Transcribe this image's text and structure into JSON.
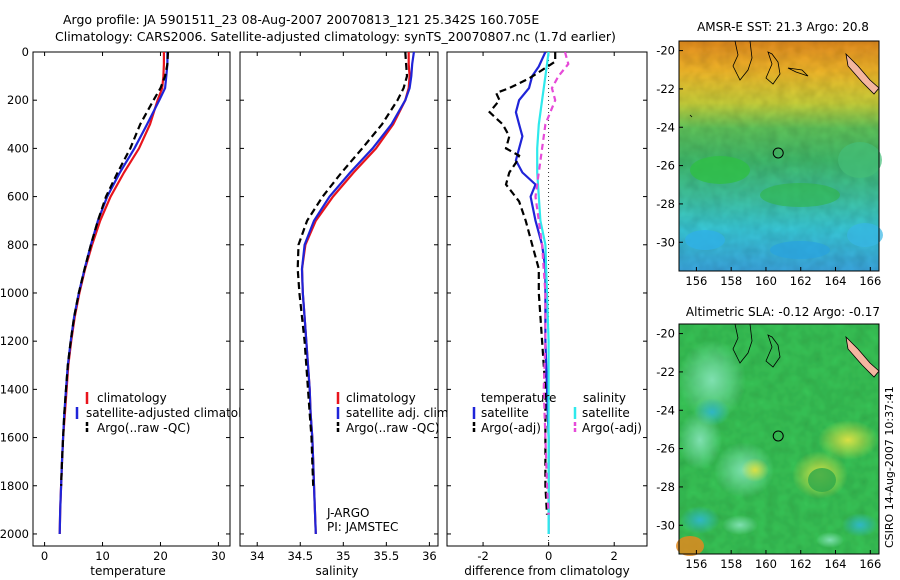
{
  "header": {
    "line1": "Argo profile: JA 5901511_23 08-Aug-2007 20070813_121 25.342S 160.705E",
    "line2": "Climatology: CARS2006. Satellite-adjusted climatology: synTS_20070807.nc (1.7d earlier)"
  },
  "stamp": "CSIRO 14-Aug-2007 10:37:41",
  "colors": {
    "climatology": "#e8141c",
    "satellite": "#1f24d8",
    "argo": "#000000",
    "satellite_sal": "#2ee9ec",
    "argo_sal": "#e64ad8"
  },
  "chart_data": [
    {
      "id": "temperature",
      "type": "line",
      "xlabel": "temperature",
      "ylabel": "",
      "xlim": [
        -2,
        32
      ],
      "ylim": [
        2050,
        0
      ],
      "xticks": [
        0,
        10,
        20,
        30
      ],
      "yticks": [
        0,
        200,
        400,
        600,
        800,
        1000,
        1200,
        1400,
        1600,
        1800,
        2000
      ],
      "legend": {
        "placement": "lower-left",
        "entries": [
          "climatology",
          "satellite-adjusted climatology",
          "Argo(..raw -QC)"
        ]
      },
      "series": [
        {
          "name": "climatology",
          "color": "climatology",
          "dash": "",
          "points": [
            [
              20.6,
              0
            ],
            [
              20.6,
              50
            ],
            [
              20.5,
              100
            ],
            [
              20.3,
              150
            ],
            [
              19.5,
              200
            ],
            [
              18.2,
              300
            ],
            [
              16.3,
              400
            ],
            [
              13.7,
              500
            ],
            [
              11.4,
              600
            ],
            [
              9.6,
              700
            ],
            [
              8.2,
              800
            ],
            [
              7.0,
              900
            ],
            [
              6.0,
              1000
            ],
            [
              5.2,
              1100
            ],
            [
              4.6,
              1200
            ],
            [
              4.1,
              1300
            ],
            [
              3.8,
              1400
            ],
            [
              3.5,
              1500
            ],
            [
              3.2,
              1600
            ],
            [
              3.0,
              1700
            ],
            [
              2.85,
              1800
            ],
            [
              2.7,
              1900
            ],
            [
              2.6,
              2000
            ]
          ]
        },
        {
          "name": "satellite-adjusted climatology",
          "color": "satellite",
          "dash": "",
          "points": [
            [
              21.2,
              0
            ],
            [
              21.2,
              50
            ],
            [
              21.0,
              100
            ],
            [
              20.8,
              150
            ],
            [
              19.8,
              200
            ],
            [
              17.7,
              300
            ],
            [
              15.5,
              400
            ],
            [
              13.0,
              500
            ],
            [
              10.8,
              600
            ],
            [
              9.2,
              700
            ],
            [
              8.0,
              800
            ],
            [
              6.9,
              900
            ],
            [
              5.9,
              1000
            ],
            [
              5.1,
              1100
            ],
            [
              4.5,
              1200
            ],
            [
              4.0,
              1300
            ],
            [
              3.7,
              1400
            ],
            [
              3.4,
              1500
            ],
            [
              3.2,
              1600
            ],
            [
              3.0,
              1700
            ],
            [
              2.85,
              1800
            ],
            [
              2.7,
              1900
            ],
            [
              2.6,
              2000
            ]
          ]
        },
        {
          "name": "Argo(..raw -QC)",
          "color": "argo",
          "dash": "7,4",
          "points": [
            [
              21.3,
              0
            ],
            [
              21.2,
              50
            ],
            [
              20.8,
              100
            ],
            [
              20.0,
              150
            ],
            [
              18.8,
              200
            ],
            [
              16.5,
              300
            ],
            [
              14.8,
              400
            ],
            [
              12.6,
              500
            ],
            [
              10.6,
              600
            ],
            [
              9.2,
              700
            ],
            [
              8.0,
              800
            ],
            [
              6.9,
              900
            ],
            [
              5.9,
              1000
            ],
            [
              5.1,
              1100
            ],
            [
              4.5,
              1200
            ],
            [
              4.0,
              1300
            ],
            [
              3.7,
              1400
            ],
            [
              3.4,
              1500
            ],
            [
              3.2,
              1600
            ],
            [
              3.0,
              1700
            ],
            [
              2.85,
              1800
            ]
          ]
        }
      ]
    },
    {
      "id": "salinity",
      "type": "line",
      "xlabel": "salinity",
      "ylabel": "",
      "xlim": [
        33.8,
        36.1
      ],
      "ylim": [
        2050,
        0
      ],
      "xticks": [
        34,
        34.5,
        35,
        35.5,
        36
      ],
      "xtick_labels": [
        "34",
        "34.5",
        "35",
        "35.5",
        "36"
      ],
      "annotation": [
        "J-ARGO",
        "PI: JAMSTEC"
      ],
      "legend": {
        "placement": "lower-right",
        "entries": [
          "climatology",
          "satellite adj. clim.",
          "Argo(..raw -QC)"
        ]
      },
      "series": [
        {
          "name": "climatology",
          "color": "climatology",
          "dash": "",
          "points": [
            [
              35.76,
              0
            ],
            [
              35.76,
              50
            ],
            [
              35.77,
              100
            ],
            [
              35.76,
              150
            ],
            [
              35.72,
              200
            ],
            [
              35.58,
              300
            ],
            [
              35.38,
              400
            ],
            [
              35.12,
              500
            ],
            [
              34.88,
              600
            ],
            [
              34.68,
              700
            ],
            [
              34.56,
              800
            ],
            [
              34.52,
              900
            ],
            [
              34.53,
              1000
            ],
            [
              34.55,
              1100
            ],
            [
              34.57,
              1200
            ],
            [
              34.59,
              1300
            ],
            [
              34.61,
              1400
            ],
            [
              34.62,
              1500
            ],
            [
              34.64,
              1600
            ],
            [
              34.65,
              1700
            ],
            [
              34.66,
              1800
            ],
            [
              34.67,
              1900
            ],
            [
              34.68,
              2000
            ]
          ]
        },
        {
          "name": "satellite adj. clim.",
          "color": "satellite",
          "dash": "",
          "points": [
            [
              35.82,
              0
            ],
            [
              35.8,
              50
            ],
            [
              35.79,
              100
            ],
            [
              35.77,
              150
            ],
            [
              35.72,
              200
            ],
            [
              35.56,
              300
            ],
            [
              35.34,
              400
            ],
            [
              35.08,
              500
            ],
            [
              34.84,
              600
            ],
            [
              34.66,
              700
            ],
            [
              34.55,
              800
            ],
            [
              34.52,
              900
            ],
            [
              34.53,
              1000
            ],
            [
              34.55,
              1100
            ],
            [
              34.57,
              1200
            ],
            [
              34.59,
              1300
            ],
            [
              34.61,
              1400
            ],
            [
              34.62,
              1500
            ],
            [
              34.64,
              1600
            ],
            [
              34.65,
              1700
            ],
            [
              34.66,
              1800
            ],
            [
              34.67,
              1900
            ],
            [
              34.68,
              2000
            ]
          ]
        },
        {
          "name": "Argo(..raw -QC)",
          "color": "argo",
          "dash": "7,4",
          "points": [
            [
              35.72,
              0
            ],
            [
              35.73,
              50
            ],
            [
              35.74,
              100
            ],
            [
              35.7,
              150
            ],
            [
              35.63,
              200
            ],
            [
              35.45,
              300
            ],
            [
              35.22,
              400
            ],
            [
              34.98,
              500
            ],
            [
              34.76,
              600
            ],
            [
              34.58,
              700
            ],
            [
              34.48,
              800
            ],
            [
              34.47,
              900
            ],
            [
              34.49,
              1000
            ],
            [
              34.52,
              1100
            ],
            [
              34.55,
              1200
            ],
            [
              34.57,
              1300
            ],
            [
              34.59,
              1400
            ],
            [
              34.61,
              1500
            ],
            [
              34.63,
              1600
            ],
            [
              34.64,
              1700
            ],
            [
              34.65,
              1800
            ]
          ]
        }
      ]
    },
    {
      "id": "difference",
      "type": "line",
      "xlabel": "difference from climatology",
      "ylabel": "",
      "xlim": [
        -3.1,
        3.0
      ],
      "ylim": [
        2050,
        0
      ],
      "xticks": [
        -2,
        0,
        2
      ],
      "zero_line": 0,
      "legend": {
        "placement": "lower",
        "groups": [
          {
            "title": "temperature",
            "entries": [
              "satellite",
              "Argo(-adj)"
            ]
          },
          {
            "title": "salinity",
            "entries": [
              "satellite",
              "Argo(-adj)"
            ]
          }
        ]
      },
      "series": [
        {
          "name": "temperature satellite",
          "legend_label": "satellite",
          "color": "satellite",
          "dash": "",
          "points": [
            [
              -0.1,
              0
            ],
            [
              -0.3,
              60
            ],
            [
              -0.5,
              100
            ],
            [
              -0.6,
              150
            ],
            [
              -0.9,
              200
            ],
            [
              -1.0,
              250
            ],
            [
              -0.9,
              300
            ],
            [
              -0.8,
              350
            ],
            [
              -0.9,
              400
            ],
            [
              -1.0,
              450
            ],
            [
              -0.8,
              500
            ],
            [
              -0.4,
              550
            ],
            [
              -0.55,
              600
            ],
            [
              -0.4,
              700
            ],
            [
              -0.2,
              800
            ],
            [
              -0.1,
              900
            ],
            [
              -0.1,
              1000
            ],
            [
              -0.1,
              1200
            ],
            [
              -0.05,
              1400
            ],
            [
              0.0,
              1600
            ],
            [
              0.0,
              1800
            ],
            [
              0.0,
              2000
            ]
          ]
        },
        {
          "name": "temperature Argo(-adj)",
          "legend_label": "Argo(-adj)",
          "color": "argo",
          "dash": "7,4",
          "points": [
            [
              0.2,
              0
            ],
            [
              0.2,
              40
            ],
            [
              -0.6,
              110
            ],
            [
              -1.2,
              150
            ],
            [
              -1.6,
              170
            ],
            [
              -1.5,
              200
            ],
            [
              -1.8,
              250
            ],
            [
              -1.4,
              300
            ],
            [
              -1.2,
              350
            ],
            [
              -1.3,
              400
            ],
            [
              -0.9,
              430
            ],
            [
              -1.0,
              460
            ],
            [
              -1.2,
              500
            ],
            [
              -1.3,
              550
            ],
            [
              -0.9,
              620
            ],
            [
              -0.7,
              700
            ],
            [
              -0.5,
              800
            ],
            [
              -0.3,
              900
            ],
            [
              -0.3,
              1000
            ],
            [
              -0.2,
              1200
            ],
            [
              -0.1,
              1400
            ],
            [
              -0.1,
              1600
            ],
            [
              -0.1,
              1800
            ],
            [
              -0.05,
              1920
            ]
          ]
        },
        {
          "name": "salinity satellite",
          "legend_label": "satellite",
          "color": "satellite_sal",
          "dash": "",
          "points": [
            [
              0.0,
              0
            ],
            [
              -0.1,
              100
            ],
            [
              -0.2,
              200
            ],
            [
              -0.3,
              300
            ],
            [
              -0.35,
              400
            ],
            [
              -0.35,
              500
            ],
            [
              -0.3,
              600
            ],
            [
              -0.25,
              700
            ],
            [
              -0.1,
              800
            ],
            [
              -0.05,
              1000
            ],
            [
              0.0,
              1200
            ],
            [
              0.0,
              1600
            ],
            [
              0.0,
              2000
            ]
          ]
        },
        {
          "name": "salinity Argo(-adj)",
          "legend_label": "Argo(-adj)",
          "color": "argo_sal",
          "dash": "6,4",
          "points": [
            [
              0.5,
              0
            ],
            [
              0.6,
              50
            ],
            [
              0.3,
              100
            ],
            [
              0.1,
              150
            ],
            [
              0.2,
              200
            ],
            [
              -0.1,
              300
            ],
            [
              -0.2,
              400
            ],
            [
              -0.3,
              500
            ],
            [
              -0.4,
              600
            ],
            [
              -0.3,
              700
            ],
            [
              -0.2,
              800
            ],
            [
              -0.15,
              900
            ],
            [
              -0.1,
              1000
            ],
            [
              -0.1,
              1200
            ],
            [
              -0.15,
              1400
            ],
            [
              -0.1,
              1600
            ],
            [
              -0.05,
              1800
            ],
            [
              0.0,
              1920
            ]
          ]
        }
      ]
    },
    {
      "id": "sst_map",
      "type": "heatmap",
      "title": "AMSR-E SST: 21.3 Argo: 20.8",
      "xlim": [
        155,
        166.5
      ],
      "ylim": [
        -31.5,
        -19.5
      ],
      "xticks": [
        156,
        158,
        160,
        162,
        164,
        166
      ],
      "yticks": [
        -20,
        -22,
        -24,
        -26,
        -28,
        -30
      ],
      "marker": {
        "lon": 160.705,
        "lat": -25.342
      }
    },
    {
      "id": "sla_map",
      "type": "heatmap",
      "title": "Altimetric SLA: -0.12 Argo: -0.17",
      "xlim": [
        155,
        166.5
      ],
      "ylim": [
        -31.5,
        -19.5
      ],
      "xticks": [
        156,
        158,
        160,
        162,
        164,
        166
      ],
      "yticks": [
        -20,
        -22,
        -24,
        -26,
        -28,
        -30
      ],
      "marker": {
        "lon": 160.705,
        "lat": -25.342
      }
    }
  ]
}
